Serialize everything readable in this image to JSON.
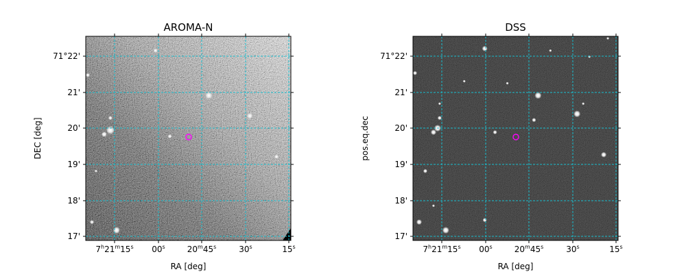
{
  "figure": {
    "panels": [
      {
        "title": "AROMA-N",
        "xlabel": "RA [deg]",
        "ylabel": "DEC [deg]",
        "image_style": "noisy-gray",
        "marker_color": "#ff00ff",
        "grid_color": "#17becf"
      },
      {
        "title": "DSS",
        "xlabel": "RA [deg]",
        "ylabel": "pos.eq.dec",
        "image_style": "dark-starfield",
        "marker_color": "#ff00ff",
        "grid_color": "#17becf"
      }
    ],
    "ra_ticks": [
      {
        "main": "7",
        "sup1": "h",
        "mid": "21",
        "sup2": "m",
        "sec": "15",
        "sup3": "s"
      },
      {
        "main": "",
        "sup1": "",
        "mid": "",
        "sup2": "",
        "sec": "00",
        "sup3": "s"
      },
      {
        "main": "",
        "sup1": "",
        "mid": "20",
        "sup2": "m",
        "sec": "45",
        "sup3": "s"
      },
      {
        "main": "",
        "sup1": "",
        "mid": "",
        "sup2": "",
        "sec": "30",
        "sup3": "s"
      },
      {
        "main": "",
        "sup1": "",
        "mid": "",
        "sup2": "",
        "sec": "15",
        "sup3": "s"
      }
    ],
    "dec_ticks": [
      "71°22'",
      "21'",
      "20'",
      "19'",
      "18'",
      "17'"
    ]
  }
}
